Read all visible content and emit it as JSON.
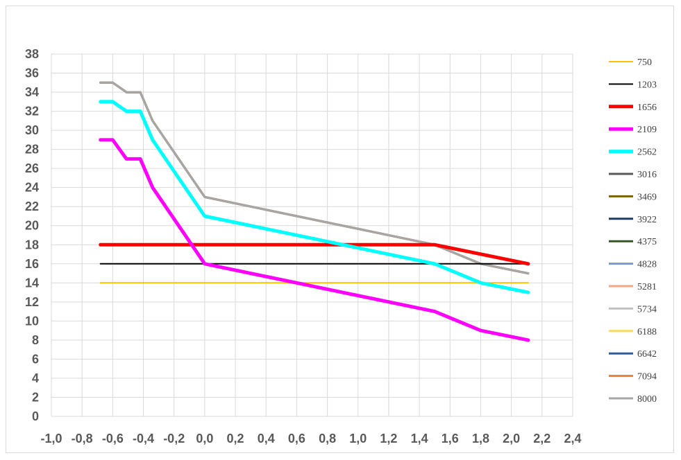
{
  "chart_data": {
    "type": "line",
    "title": "",
    "xlabel": "",
    "ylabel": "",
    "xlim": [
      -1.0,
      2.4
    ],
    "ylim": [
      0,
      38
    ],
    "x_ticks": [
      "-1,0",
      "-0,8",
      "-0,6",
      "-0,4",
      "-0,2",
      "0,0",
      "0,2",
      "0,4",
      "0,6",
      "0,8",
      "1,0",
      "1,2",
      "1,4",
      "1,6",
      "1,8",
      "2,0",
      "2,2",
      "2,4"
    ],
    "y_ticks": [
      "0",
      "2",
      "4",
      "6",
      "8",
      "10",
      "12",
      "14",
      "16",
      "18",
      "20",
      "22",
      "24",
      "26",
      "28",
      "30",
      "32",
      "34",
      "36",
      "38"
    ],
    "grid": true,
    "legend_position": "right",
    "series": [
      {
        "name": "750",
        "color": "#FFC000",
        "points": [
          [
            -0.68,
            14
          ],
          [
            2.11,
            14
          ]
        ]
      },
      {
        "name": "1203",
        "color": "#000000",
        "points": [
          [
            -0.68,
            16
          ],
          [
            2.11,
            16
          ]
        ]
      },
      {
        "name": "1656",
        "color": "#FF0000",
        "points": [
          [
            -0.68,
            18
          ],
          [
            1.5,
            18
          ],
          [
            2.11,
            16
          ]
        ]
      },
      {
        "name": "2109",
        "color": "#FF00FF",
        "points": [
          [
            -0.68,
            29
          ],
          [
            -0.6,
            29
          ],
          [
            -0.51,
            27
          ],
          [
            -0.42,
            27
          ],
          [
            -0.34,
            24
          ],
          [
            0.0,
            16
          ],
          [
            1.5,
            11
          ],
          [
            1.8,
            9
          ],
          [
            2.11,
            8
          ]
        ]
      },
      {
        "name": "2562",
        "color": "#00FFFF",
        "points": [
          [
            -0.68,
            33
          ],
          [
            -0.6,
            33
          ],
          [
            -0.51,
            32
          ],
          [
            -0.42,
            32
          ],
          [
            -0.34,
            29
          ],
          [
            0.0,
            21
          ],
          [
            1.5,
            16
          ],
          [
            1.8,
            14
          ],
          [
            2.11,
            13
          ]
        ]
      },
      {
        "name": "3016",
        "color": "#595959",
        "points": [
          [
            -0.68,
            35
          ],
          [
            -0.6,
            35
          ],
          [
            -0.51,
            34
          ],
          [
            -0.42,
            34
          ],
          [
            -0.34,
            31
          ],
          [
            0.0,
            23
          ],
          [
            1.5,
            18
          ],
          [
            1.8,
            16
          ],
          [
            2.11,
            15
          ]
        ]
      },
      {
        "name": "3469",
        "color": "#7F6000",
        "points": [
          [
            -0.68,
            35
          ],
          [
            -0.6,
            35
          ],
          [
            -0.51,
            34
          ],
          [
            -0.42,
            34
          ],
          [
            -0.34,
            31
          ],
          [
            0.0,
            23
          ],
          [
            1.5,
            18
          ],
          [
            1.8,
            16
          ],
          [
            2.11,
            15
          ]
        ]
      },
      {
        "name": "3922",
        "color": "#1F3864",
        "points": [
          [
            -0.68,
            35
          ],
          [
            -0.6,
            35
          ],
          [
            -0.51,
            34
          ],
          [
            -0.42,
            34
          ],
          [
            -0.34,
            31
          ],
          [
            0.0,
            23
          ],
          [
            1.5,
            18
          ],
          [
            1.8,
            16
          ],
          [
            2.11,
            15
          ]
        ]
      },
      {
        "name": "4375",
        "color": "#375623",
        "points": [
          [
            -0.68,
            35
          ],
          [
            -0.6,
            35
          ],
          [
            -0.51,
            34
          ],
          [
            -0.42,
            34
          ],
          [
            -0.34,
            31
          ],
          [
            0.0,
            23
          ],
          [
            1.5,
            18
          ],
          [
            1.8,
            16
          ],
          [
            2.11,
            15
          ]
        ]
      },
      {
        "name": "4828",
        "color": "#6F9BD8",
        "points": [
          [
            -0.68,
            35
          ],
          [
            -0.6,
            35
          ],
          [
            -0.51,
            34
          ],
          [
            -0.42,
            34
          ],
          [
            -0.34,
            31
          ],
          [
            0.0,
            23
          ],
          [
            1.5,
            18
          ],
          [
            1.8,
            16
          ],
          [
            2.11,
            15
          ]
        ]
      },
      {
        "name": "5281",
        "color": "#F4A582",
        "points": [
          [
            -0.68,
            35
          ],
          [
            -0.6,
            35
          ],
          [
            -0.51,
            34
          ],
          [
            -0.42,
            34
          ],
          [
            -0.34,
            31
          ],
          [
            0.0,
            23
          ],
          [
            1.5,
            18
          ],
          [
            1.8,
            16
          ],
          [
            2.11,
            15
          ]
        ]
      },
      {
        "name": "5734",
        "color": "#BFBFBF",
        "points": [
          [
            -0.68,
            35
          ],
          [
            -0.6,
            35
          ],
          [
            -0.51,
            34
          ],
          [
            -0.42,
            34
          ],
          [
            -0.34,
            31
          ],
          [
            0.0,
            23
          ],
          [
            1.5,
            18
          ],
          [
            1.8,
            16
          ],
          [
            2.11,
            15
          ]
        ]
      },
      {
        "name": "6188",
        "color": "#FFD966",
        "points": [
          [
            -0.68,
            35
          ],
          [
            -0.6,
            35
          ],
          [
            -0.51,
            34
          ],
          [
            -0.42,
            34
          ],
          [
            -0.34,
            31
          ],
          [
            0.0,
            23
          ],
          [
            1.5,
            18
          ],
          [
            1.8,
            16
          ],
          [
            2.11,
            15
          ]
        ]
      },
      {
        "name": "6642",
        "color": "#2E5D9F",
        "points": [
          [
            -0.68,
            35
          ],
          [
            -0.6,
            35
          ],
          [
            -0.51,
            34
          ],
          [
            -0.42,
            34
          ],
          [
            -0.34,
            31
          ],
          [
            0.0,
            23
          ],
          [
            1.5,
            18
          ],
          [
            1.8,
            16
          ],
          [
            2.11,
            15
          ]
        ]
      },
      {
        "name": "7094",
        "color": "#ED7D31",
        "points": [
          [
            -0.68,
            35
          ],
          [
            -0.6,
            35
          ],
          [
            -0.51,
            34
          ],
          [
            -0.42,
            34
          ],
          [
            -0.34,
            31
          ],
          [
            0.0,
            23
          ],
          [
            1.5,
            18
          ],
          [
            1.8,
            16
          ],
          [
            2.11,
            15
          ]
        ]
      },
      {
        "name": "8000",
        "color": "#A6A6A6",
        "points": [
          [
            -0.68,
            35
          ],
          [
            -0.6,
            35
          ],
          [
            -0.51,
            34
          ],
          [
            -0.42,
            34
          ],
          [
            -0.34,
            31
          ],
          [
            0.0,
            23
          ],
          [
            1.5,
            18
          ],
          [
            1.8,
            16
          ],
          [
            2.11,
            15
          ]
        ]
      }
    ]
  }
}
